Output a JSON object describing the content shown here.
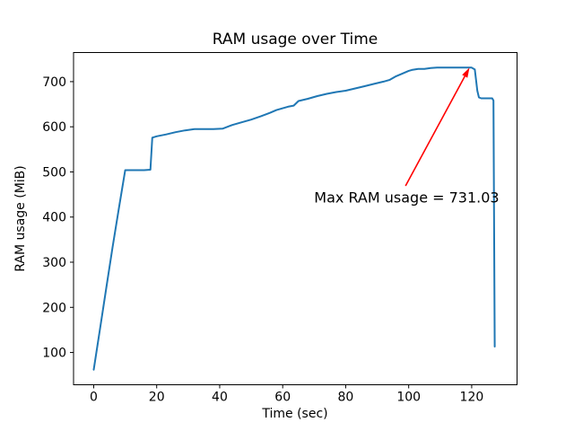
{
  "chart_data": {
    "type": "line",
    "title": "RAM usage over Time",
    "xlabel": "Time (sec)",
    "ylabel": "RAM usage (MiB)",
    "xlim": [
      -6.4,
      134.4
    ],
    "ylim": [
      28.5,
      764.5
    ],
    "xticks": [
      0,
      20,
      40,
      60,
      80,
      100,
      120
    ],
    "yticks": [
      100,
      200,
      300,
      400,
      500,
      600,
      700
    ],
    "grid": false,
    "legend_position": "none",
    "background_color": "#ffffff",
    "line_color": "#1f77b4",
    "spine_color": "#000000",
    "series": [
      {
        "name": "RAM usage (MiB)",
        "x": [
          0,
          2,
          4,
          6,
          8,
          10,
          12,
          14,
          16,
          18,
          18.6,
          20,
          23,
          26,
          29,
          32,
          35,
          38,
          41,
          44,
          47,
          50,
          53,
          56,
          58,
          60,
          62,
          63.5,
          65,
          68,
          71,
          74,
          77,
          80,
          83,
          86,
          89,
          92,
          94,
          96,
          98,
          100,
          101,
          103,
          105,
          107,
          109,
          112,
          115,
          118,
          120,
          121,
          121.8,
          122.3,
          123,
          125,
          126.5,
          126.9,
          127.3
        ],
        "y": [
          62,
          152,
          243,
          333,
          420,
          504,
          504,
          504,
          504,
          505,
          576,
          579,
          583,
          588,
          592,
          595,
          595,
          595,
          596,
          604,
          610,
          616,
          623,
          631,
          637,
          641,
          645,
          647,
          657,
          662,
          668,
          673,
          677,
          680,
          685,
          690,
          695,
          700,
          704,
          712,
          718,
          724,
          726,
          728,
          728,
          730,
          731,
          731,
          731,
          731,
          731.03,
          727,
          680,
          665,
          663,
          663,
          663,
          658,
          113
        ]
      }
    ],
    "annotation": {
      "text": "Max RAM usage = 731.03",
      "max_value": 731.03,
      "color": "#ff0000",
      "arrow_tip_xy": [
        119.3,
        731.03
      ],
      "arrow_tail_xy": [
        99,
        469
      ],
      "text_baseline_xy": [
        70,
        432
      ]
    }
  }
}
